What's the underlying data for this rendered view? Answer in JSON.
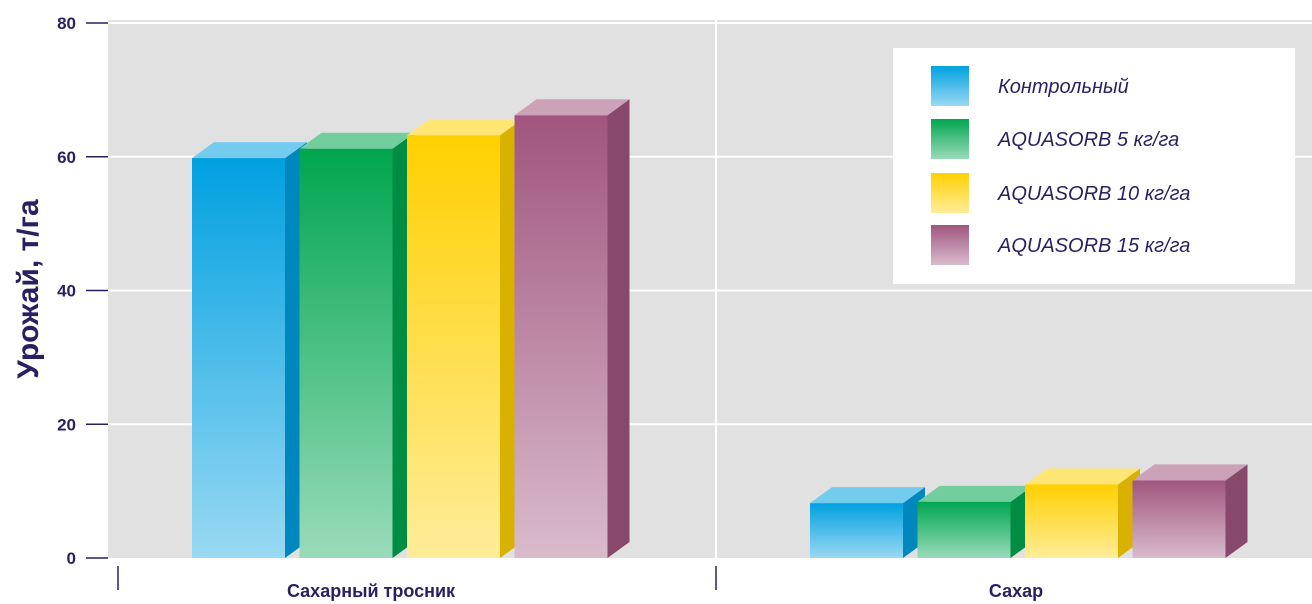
{
  "chart_data": {
    "type": "bar",
    "categories": [
      "Сахарный тросник",
      "Сахар"
    ],
    "series": [
      {
        "name": "Контрольный",
        "values": [
          59.8,
          8.2
        ],
        "color": "#00a0e0"
      },
      {
        "name": "AQUASORB 5 кг/га",
        "values": [
          61.2,
          8.4
        ],
        "color": "#00a64f"
      },
      {
        "name": "AQUASORB 10 кг/га",
        "values": [
          63.2,
          11.0
        ],
        "color": "#ffd000"
      },
      {
        "name": "AQUASORB 15 кг/га",
        "values": [
          66.2,
          11.6
        ],
        "color": "#a0557e"
      }
    ],
    "title": "",
    "xlabel": "",
    "ylabel": "Урожай, т/га",
    "ylim": [
      0,
      80
    ],
    "yticks": [
      "0",
      "20",
      "40",
      "60",
      "80"
    ],
    "grid": true,
    "legend_position": "top-right"
  }
}
